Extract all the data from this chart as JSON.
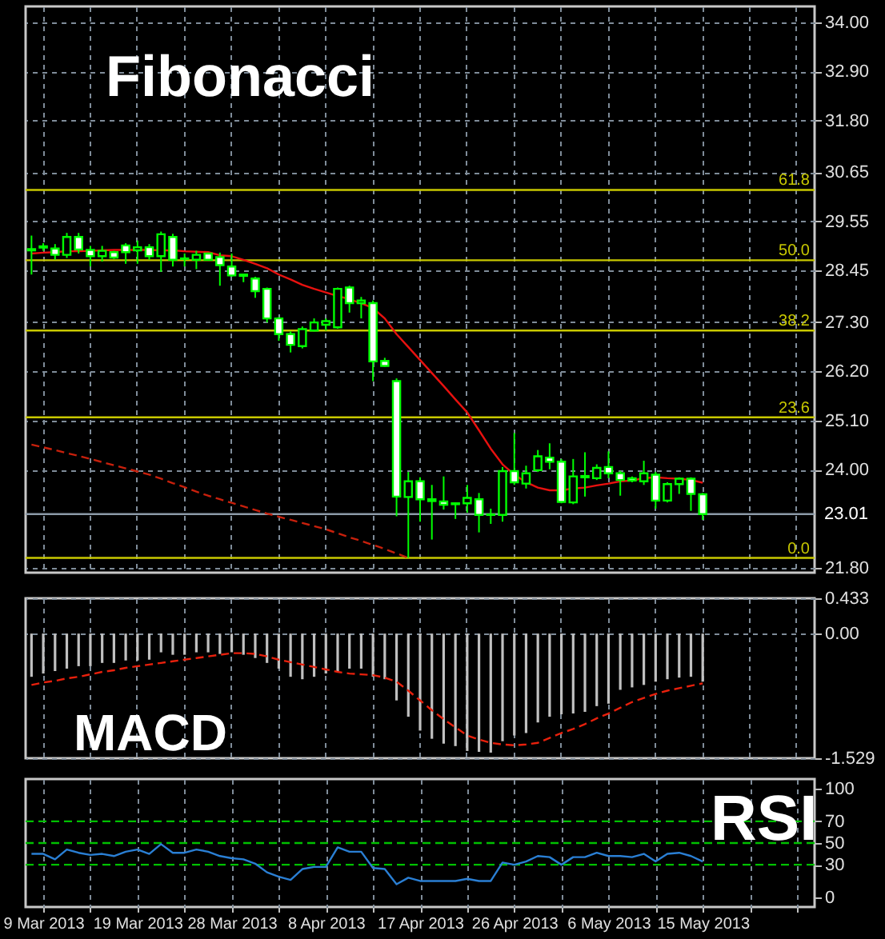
{
  "chart_data": [
    {
      "type": "candlestick",
      "annotations": [
        "Fibonacci",
        {
          "text": "61.8",
          "y": 30.25
        },
        {
          "text": "50.0",
          "y": 28.68
        },
        {
          "text": "38.2",
          "y": 27.11
        },
        {
          "text": "23.6",
          "y": 25.17
        },
        {
          "text": "0.0",
          "y": 22.03
        }
      ],
      "grid": true,
      "tick_labels": "y",
      "color": "#00ff00",
      "categories": [
        null,
        null,
        null,
        null,
        null,
        null,
        null,
        null,
        null,
        null,
        null,
        null,
        null,
        null,
        null,
        null,
        null,
        null,
        null,
        null,
        null,
        null,
        null,
        null,
        null,
        null,
        null,
        null,
        null,
        null,
        null,
        null,
        null,
        null,
        null,
        null,
        null,
        null,
        null,
        null,
        null,
        null,
        null,
        null,
        null,
        null,
        null,
        null,
        null,
        null,
        null,
        null,
        null,
        null,
        null,
        null,
        null,
        null,
        null,
        null,
        null,
        null,
        null,
        null,
        null,
        null,
        null
      ],
      "ohlc": [
        [
          28.93,
          29.23,
          28.36,
          28.9
        ],
        [
          28.96,
          29.06,
          28.89,
          28.99
        ],
        [
          28.94,
          29.04,
          28.69,
          28.8
        ],
        [
          28.8,
          29.29,
          28.73,
          29.2
        ],
        [
          29.2,
          29.29,
          28.83,
          28.92
        ],
        [
          28.91,
          29.0,
          28.54,
          28.77
        ],
        [
          28.77,
          29.0,
          28.65,
          28.89
        ],
        [
          28.86,
          28.89,
          28.71,
          28.74
        ],
        [
          29.01,
          29.06,
          28.6,
          28.86
        ],
        [
          28.9,
          29.12,
          28.6,
          28.97
        ],
        [
          28.97,
          29.04,
          28.69,
          28.77
        ],
        [
          28.77,
          29.32,
          28.42,
          29.26
        ],
        [
          29.2,
          29.27,
          28.54,
          28.69
        ],
        [
          28.71,
          28.83,
          28.54,
          28.72
        ],
        [
          28.69,
          28.89,
          28.48,
          28.8
        ],
        [
          28.83,
          28.85,
          28.68,
          28.69
        ],
        [
          28.75,
          28.85,
          28.11,
          28.57
        ],
        [
          28.54,
          28.83,
          28.31,
          28.34
        ],
        [
          28.33,
          28.36,
          28.19,
          28.36
        ],
        [
          28.27,
          28.31,
          27.84,
          27.99
        ],
        [
          28.04,
          28.07,
          27.29,
          27.38
        ],
        [
          27.38,
          27.41,
          26.88,
          27.03
        ],
        [
          27.03,
          27.09,
          26.62,
          26.79
        ],
        [
          26.76,
          27.2,
          26.71,
          27.14
        ],
        [
          27.11,
          27.38,
          27.09,
          27.29
        ],
        [
          27.24,
          27.38,
          27.11,
          27.32
        ],
        [
          27.18,
          28.07,
          27.15,
          28.04
        ],
        [
          28.07,
          28.11,
          27.51,
          27.72
        ],
        [
          27.72,
          27.86,
          27.38,
          27.78
        ],
        [
          27.72,
          27.78,
          25.98,
          26.42
        ],
        [
          26.43,
          26.5,
          26.3,
          26.32
        ],
        [
          25.98,
          26.04,
          22.96,
          23.4
        ],
        [
          23.39,
          23.95,
          22.03,
          23.74
        ],
        [
          23.74,
          23.83,
          22.84,
          23.34
        ],
        [
          23.34,
          23.66,
          22.44,
          23.3
        ],
        [
          23.29,
          23.85,
          23.11,
          23.22
        ],
        [
          23.25,
          23.27,
          22.9,
          23.23
        ],
        [
          23.25,
          23.66,
          23.04,
          23.37
        ],
        [
          23.34,
          23.48,
          22.6,
          22.99
        ],
        [
          23.0,
          23.13,
          22.79,
          22.99
        ],
        [
          22.99,
          24.06,
          22.84,
          23.97
        ],
        [
          23.97,
          24.82,
          23.66,
          23.72
        ],
        [
          23.69,
          24.09,
          23.58,
          23.92
        ],
        [
          23.99,
          24.44,
          23.95,
          24.3
        ],
        [
          24.27,
          24.59,
          24.01,
          24.18
        ],
        [
          24.18,
          24.24,
          23.25,
          23.28
        ],
        [
          23.27,
          24.24,
          23.23,
          23.85
        ],
        [
          23.86,
          24.39,
          23.4,
          23.83
        ],
        [
          23.81,
          24.12,
          23.77,
          24.04
        ],
        [
          24.06,
          24.41,
          23.81,
          23.92
        ],
        [
          23.92,
          23.97,
          23.42,
          23.77
        ],
        [
          23.81,
          23.85,
          23.72,
          23.76
        ],
        [
          23.74,
          24.2,
          23.66,
          23.92
        ],
        [
          23.89,
          23.95,
          23.13,
          23.31
        ],
        [
          23.31,
          23.72,
          23.27,
          23.68
        ],
        [
          23.68,
          23.83,
          23.46,
          23.8
        ],
        [
          23.8,
          23.83,
          23.08,
          23.46
        ],
        [
          23.45,
          23.48,
          22.88,
          23.01
        ],
        null,
        null,
        null,
        null,
        null,
        null,
        null,
        null,
        null
      ],
      "colors": [
        "#ffffff",
        "#000000",
        "#ffffff",
        "#000000",
        "#ffffff",
        "#ffffff",
        "#000000",
        "#ffffff",
        "#ffffff",
        "#000000",
        "#ffffff",
        "#000000",
        "#ffffff",
        "#000000",
        "#000000",
        "#ffffff",
        "#ffffff",
        "#ffffff",
        "#000000",
        "#ffffff",
        "#ffffff",
        "#ffffff",
        "#ffffff",
        "#000000",
        "#000000",
        "#000000",
        "#000000",
        "#ffffff",
        "#000000",
        "#ffffff",
        "#ffffff",
        "#ffffff",
        "#000000",
        "#ffffff",
        "#ffffff",
        "#ffffff",
        "#ffffff",
        "#000000",
        "#ffffff",
        "#ffffff",
        "#000000",
        "#ffffff",
        "#000000",
        "#000000",
        "#ffffff",
        "#ffffff",
        "#000000",
        "#ffffff",
        "#000000",
        "#ffffff",
        "#ffffff",
        "#ffffff",
        "#000000",
        "#ffffff",
        "#000000",
        "#000000",
        "#ffffff",
        "#ffffff",
        null,
        null,
        null,
        null,
        null,
        null,
        null,
        null,
        null
      ],
      "series": [
        {
          "type": "line",
          "color": "#e8110f",
          "values": [
            28.83,
            28.85,
            28.86,
            28.88,
            28.88,
            28.89,
            28.9,
            28.91,
            28.91,
            28.91,
            28.91,
            28.9,
            28.9,
            28.88,
            28.87,
            28.86,
            28.79,
            28.77,
            28.69,
            28.6,
            28.5,
            28.36,
            28.25,
            28.13,
            28.04,
            27.96,
            27.88,
            27.81,
            27.72,
            27.61,
            27.38,
            27.03,
            26.74,
            26.45,
            26.16,
            25.87,
            25.57,
            25.28,
            24.88,
            24.47,
            24.12,
            23.89,
            23.72,
            23.6,
            23.54,
            23.54,
            23.58,
            23.6,
            23.65,
            23.69,
            23.74,
            23.76,
            23.81,
            23.83,
            23.81,
            23.8,
            23.77,
            23.71,
            null,
            null,
            null,
            null,
            null,
            null,
            null,
            null,
            null
          ]
        },
        {
          "type": "line",
          "color": "#c8200c",
          "line_style": "dashed",
          "values": [
            24.56,
            24.5,
            24.44,
            24.37,
            24.31,
            24.24,
            24.17,
            24.1,
            24.03,
            23.96,
            23.89,
            23.8,
            23.7,
            23.61,
            23.51,
            23.42,
            23.34,
            23.26,
            23.18,
            23.1,
            23.02,
            22.95,
            22.88,
            22.81,
            22.74,
            22.67,
            22.58,
            22.49,
            22.41,
            22.32,
            22.23,
            22.13,
            22.03,
            null,
            null,
            null,
            null,
            null,
            null,
            null,
            null,
            null,
            null,
            null,
            null,
            null,
            null,
            null,
            null,
            null,
            null,
            null,
            null,
            null,
            null,
            null,
            null,
            null,
            null,
            null,
            null,
            null,
            null,
            null,
            null,
            null,
            null
          ]
        }
      ],
      "ylim": [
        21.7,
        34.35
      ],
      "yticks": [
        {
          "value": 21.8,
          "label": "21.80"
        },
        {
          "value": 24,
          "label": "24.00"
        },
        {
          "value": 25.1,
          "label": "25.10"
        },
        {
          "value": 26.2,
          "label": "26.20"
        },
        {
          "value": 27.3,
          "label": "27.30"
        },
        {
          "value": 28.45,
          "label": "28.45"
        },
        {
          "value": 29.55,
          "label": "29.55"
        },
        {
          "value": 30.65,
          "label": "30.65"
        },
        {
          "value": 31.8,
          "label": "31.80"
        },
        {
          "value": 32.9,
          "label": "32.90"
        },
        {
          "value": 34,
          "label": "34.00"
        }
      ],
      "ref_lines": [
        {
          "axis": "y",
          "value": 30.25,
          "color": "#c8c800"
        },
        {
          "axis": "y",
          "value": 28.68,
          "color": "#c8c800"
        },
        {
          "axis": "y",
          "value": 27.11,
          "color": "#c8c800"
        },
        {
          "axis": "y",
          "value": 25.17,
          "color": "#c8c800"
        },
        {
          "axis": "y",
          "value": 22.03,
          "color": "#c8c800"
        },
        {
          "axis": "y",
          "value": 23.01,
          "label": "23.01",
          "color": "#8c9aa8"
        }
      ]
    },
    {
      "type": "bar",
      "annotations": [
        "MACD"
      ],
      "grid": true,
      "tick_labels": "y",
      "categories": [
        null,
        null,
        null,
        null,
        null,
        null,
        null,
        null,
        null,
        null,
        null,
        null,
        null,
        null,
        null,
        null,
        null,
        null,
        null,
        null,
        null,
        null,
        null,
        null,
        null,
        null,
        null,
        null,
        null,
        null,
        null,
        null,
        null,
        null,
        null,
        null,
        null,
        null,
        null,
        null,
        null,
        null,
        null,
        null,
        null,
        null,
        null,
        null,
        null,
        null,
        null,
        null,
        null,
        null,
        null,
        null,
        null,
        null,
        null,
        null,
        null,
        null,
        null,
        null,
        null,
        null,
        null
      ],
      "series": [
        {
          "type": "bar",
          "color": "#c0c0c0",
          "values": [
            -0.53,
            -0.49,
            -0.46,
            -0.43,
            -0.4,
            -0.4,
            -0.36,
            -0.36,
            -0.33,
            -0.33,
            -0.32,
            -0.23,
            -0.26,
            -0.26,
            -0.23,
            -0.23,
            -0.25,
            -0.23,
            -0.26,
            -0.3,
            -0.36,
            -0.43,
            -0.53,
            -0.56,
            -0.53,
            -0.49,
            -0.46,
            -0.43,
            -0.43,
            -0.53,
            -0.56,
            -0.82,
            -1.02,
            -1.19,
            -1.29,
            -1.35,
            -1.38,
            -1.44,
            -1.45,
            -1.46,
            -1.32,
            -1.25,
            -1.22,
            -1.09,
            -1.02,
            -0.99,
            -0.98,
            -0.96,
            -0.89,
            -0.86,
            -0.69,
            -0.66,
            -0.63,
            -0.59,
            -0.56,
            -0.54,
            -0.53,
            -0.59,
            null,
            null,
            null,
            null,
            null,
            null,
            null,
            null,
            null
          ]
        },
        {
          "type": "line",
          "color": "#e8200c",
          "line_style": "dashed",
          "values": [
            -0.63,
            -0.6,
            -0.58,
            -0.55,
            -0.53,
            -0.5,
            -0.47,
            -0.45,
            -0.42,
            -0.4,
            -0.38,
            -0.36,
            -0.34,
            -0.32,
            -0.3,
            -0.28,
            -0.26,
            -0.24,
            -0.24,
            -0.25,
            -0.28,
            -0.32,
            -0.35,
            -0.38,
            -0.41,
            -0.44,
            -0.47,
            -0.49,
            -0.5,
            -0.51,
            -0.54,
            -0.59,
            -0.7,
            -0.82,
            -0.94,
            -1.05,
            -1.15,
            -1.25,
            -1.3,
            -1.34,
            -1.36,
            -1.37,
            -1.36,
            -1.34,
            -1.28,
            -1.22,
            -1.17,
            -1.11,
            -1.04,
            -0.98,
            -0.91,
            -0.84,
            -0.79,
            -0.74,
            -0.7,
            -0.67,
            -0.64,
            -0.61,
            null,
            null,
            null,
            null,
            null,
            null,
            null,
            null,
            null
          ]
        }
      ],
      "ylim": [
        -1.529,
        0.433
      ],
      "yticks": [
        -1.529,
        {
          "value": 0,
          "label": "0.00"
        },
        0.433
      ]
    },
    {
      "type": "line",
      "annotations": [
        "RSI"
      ],
      "grid": "x",
      "categories": [
        null,
        "9 Mar 2013",
        null,
        null,
        null,
        null,
        null,
        null,
        null,
        "19 Mar 2013",
        null,
        null,
        null,
        null,
        null,
        null,
        null,
        "28 Mar 2013",
        null,
        null,
        null,
        null,
        null,
        null,
        null,
        "8 Apr 2013",
        null,
        null,
        null,
        null,
        null,
        null,
        null,
        "17 Apr 2013",
        null,
        null,
        null,
        null,
        null,
        null,
        null,
        "26 Apr 2013",
        null,
        null,
        null,
        null,
        null,
        null,
        null,
        "6 May 2013",
        null,
        null,
        null,
        null,
        null,
        null,
        null,
        "15 May 2013",
        null,
        null,
        null,
        null,
        null,
        null,
        null,
        null,
        null
      ],
      "series": [
        {
          "color": "#2a7fd4",
          "values": [
            40,
            40,
            35,
            44,
            41,
            39,
            40,
            38,
            42,
            44,
            40,
            49,
            41,
            41,
            44,
            42,
            38,
            36,
            35,
            31,
            23,
            19,
            16,
            26,
            28,
            28,
            46,
            42,
            42,
            27,
            26,
            12,
            18,
            15,
            15,
            15,
            15,
            17,
            15,
            15,
            32,
            30,
            33,
            38,
            37,
            30,
            37,
            37,
            41,
            38,
            38,
            37,
            40,
            33,
            40,
            41,
            38,
            33,
            null,
            null,
            null,
            null,
            null,
            null,
            null,
            null,
            null
          ]
        }
      ],
      "ylim": [
        -9,
        109
      ],
      "yticks": [
        0,
        30,
        50,
        70,
        100
      ],
      "ref_lines": [
        {
          "axis": "y",
          "value": 30,
          "color": "#00c000",
          "line_style": "dashed"
        },
        {
          "axis": "y",
          "value": 50,
          "color": "#00c000",
          "line_style": "dashed"
        },
        {
          "axis": "y",
          "value": 70,
          "color": "#00c000",
          "line_style": "dashed"
        }
      ]
    }
  ]
}
